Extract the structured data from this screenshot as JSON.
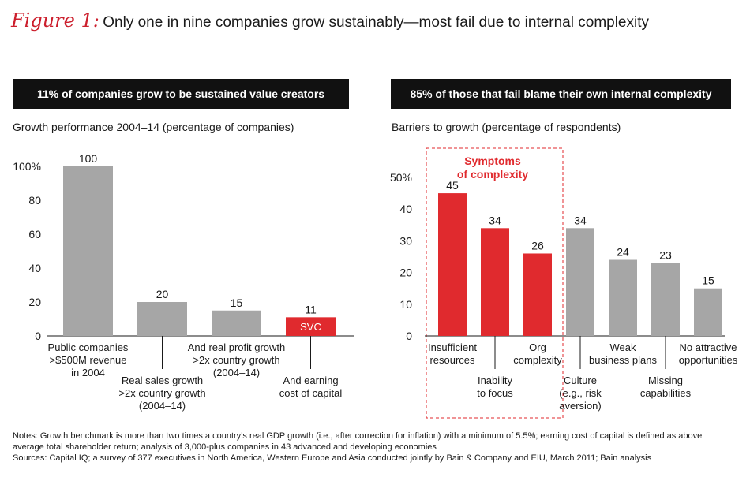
{
  "figure": {
    "label": "Figure 1:",
    "title": "Only one in nine companies grow sustainably—most fail due to internal complexity"
  },
  "colors": {
    "grey": "#a6a6a6",
    "red": "#e02a2e",
    "banner": "#111111",
    "accent": "#cc1f2d"
  },
  "left_panel": {
    "banner": "11% of companies grow to be sustained value creators",
    "subtitle": "Growth performance 2004–14 (percentage of companies)"
  },
  "right_panel": {
    "banner": "85% of those that fail blame their own internal complexity",
    "subtitle": "Barriers to growth (percentage of respondents)",
    "highlight_label": [
      "Symptoms",
      "of complexity"
    ]
  },
  "chart_data": [
    {
      "type": "bar",
      "title": "Growth performance 2004–14 (percentage of companies)",
      "ylim": [
        0,
        100
      ],
      "yticks": [
        "0",
        "20",
        "40",
        "60",
        "80",
        "100%"
      ],
      "categories": [
        [
          "Public companies",
          ">$500M revenue",
          "in 2004"
        ],
        [
          "Real sales growth",
          ">2x country growth",
          "(2004–14)"
        ],
        [
          "And real profit growth",
          ">2x country growth",
          "(2004–14)"
        ],
        [
          "And earning",
          "cost of capital"
        ]
      ],
      "values": [
        100,
        20,
        15,
        11
      ],
      "value_labels": [
        "100",
        "20",
        "15",
        "11"
      ],
      "bar_colors": [
        "grey",
        "grey",
        "grey",
        "red"
      ],
      "bar_inner_labels": [
        "",
        "",
        "",
        "SVC"
      ]
    },
    {
      "type": "bar",
      "title": "Barriers to growth (percentage of respondents)",
      "ylim": [
        0,
        50
      ],
      "yticks": [
        "0",
        "10",
        "20",
        "30",
        "40",
        "50%"
      ],
      "categories": [
        [
          "Insufficient",
          "resources"
        ],
        [
          "Inability",
          "to focus"
        ],
        [
          "Org",
          "complexity"
        ],
        [
          "Culture",
          "(e.g., risk",
          "aversion)"
        ],
        [
          "Weak",
          "business plans"
        ],
        [
          "Missing",
          "capabilities"
        ],
        [
          "No attractive",
          "opportunities"
        ]
      ],
      "values": [
        45,
        34,
        26,
        34,
        24,
        23,
        15
      ],
      "value_labels": [
        "45",
        "34",
        "26",
        "34",
        "24",
        "23",
        "15"
      ],
      "bar_colors": [
        "red",
        "red",
        "red",
        "grey",
        "grey",
        "grey",
        "grey"
      ]
    }
  ],
  "notes": [
    "Notes: Growth benchmark is more than two times a country’s real GDP growth (i.e., after correction for inflation) with a minimum of 5.5%; earning cost of capital is defined as above",
    "average total shareholder return; analysis of 3,000-plus companies in 43 advanced and developing economies",
    "Sources: Capital IQ; a survey of 377 executives in North America, Western Europe and Asia conducted jointly by Bain & Company and EIU, March 2011; Bain analysis"
  ]
}
